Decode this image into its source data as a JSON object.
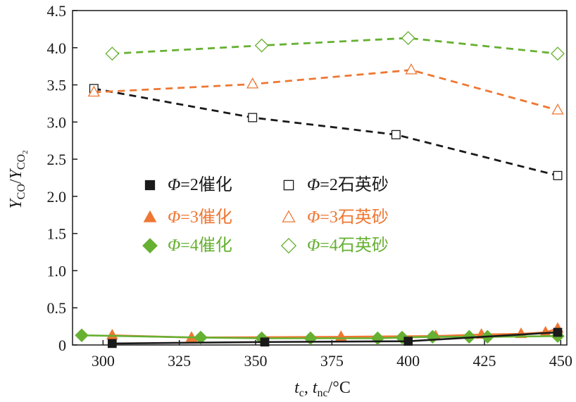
{
  "chart_data": {
    "type": "line",
    "xlabel": {
      "main": "t",
      "sub1": "c",
      "sep": ", ",
      "main2": "t",
      "sub2": "nc",
      "unit": "/°C"
    },
    "ylabel": {
      "main1": "Y",
      "sub1": "CO",
      "slash": "/",
      "main2": "Y",
      "sub2": "CO",
      "subsub2": "2"
    },
    "xlim": [
      290,
      452
    ],
    "ylim": [
      0,
      4.5
    ],
    "xticks": [
      300,
      325,
      350,
      375,
      400,
      425,
      450
    ],
    "yticks": [
      0,
      0.5,
      1.0,
      1.5,
      2.0,
      2.5,
      3.0,
      3.5,
      4.0,
      4.5
    ],
    "ytick_labels": [
      "0",
      "0.5",
      "1.0",
      "1.5",
      "2.0",
      "2.5",
      "3.0",
      "3.5",
      "4.0",
      "4.5"
    ],
    "legend_position": "center-left",
    "series": [
      {
        "name": "Φ=2催化",
        "phi": "Φ",
        "suffix": "=2催化",
        "color": "#1a1a1a",
        "marker": "square",
        "filled": true,
        "line": "solid",
        "x": [
          303,
          353,
          400,
          449
        ],
        "y": [
          0.02,
          0.04,
          0.05,
          0.17
        ]
      },
      {
        "name": "Φ=3催化",
        "phi": "Φ",
        "suffix": "=3催化",
        "color": "#ee7733",
        "marker": "triangle",
        "filled": true,
        "line": "solid",
        "x": [
          303,
          329,
          378,
          409,
          424,
          437,
          445,
          449
        ],
        "y": [
          0.13,
          0.1,
          0.11,
          0.12,
          0.14,
          0.15,
          0.17,
          0.22
        ]
      },
      {
        "name": "Φ=4催化",
        "phi": "Φ",
        "suffix": "=4催化",
        "color": "#66b032",
        "marker": "diamond",
        "filled": true,
        "line": "solid",
        "x": [
          293,
          332,
          352,
          368,
          390,
          398,
          408,
          420,
          426,
          449
        ],
        "y": [
          0.13,
          0.1,
          0.09,
          0.09,
          0.09,
          0.1,
          0.11,
          0.11,
          0.11,
          0.12
        ]
      },
      {
        "name": "Φ=2石英砂",
        "phi": "Φ",
        "suffix": "=2石英砂",
        "color": "#1a1a1a",
        "marker": "square",
        "filled": false,
        "line": "dashed",
        "x": [
          297,
          349,
          396,
          449
        ],
        "y": [
          3.45,
          3.06,
          2.83,
          2.28
        ]
      },
      {
        "name": "Φ=3石英砂",
        "phi": "Φ",
        "suffix": "=3石英砂",
        "color": "#ee7733",
        "marker": "triangle",
        "filled": false,
        "line": "dashed",
        "x": [
          297,
          349,
          401,
          449
        ],
        "y": [
          3.4,
          3.51,
          3.7,
          3.16
        ]
      },
      {
        "name": "Φ=4石英砂",
        "phi": "Φ",
        "suffix": "=4石英砂",
        "color": "#66b032",
        "marker": "diamond",
        "filled": false,
        "line": "dashed",
        "x": [
          303,
          352,
          400,
          449
        ],
        "y": [
          3.92,
          4.03,
          4.13,
          3.92
        ]
      }
    ]
  }
}
